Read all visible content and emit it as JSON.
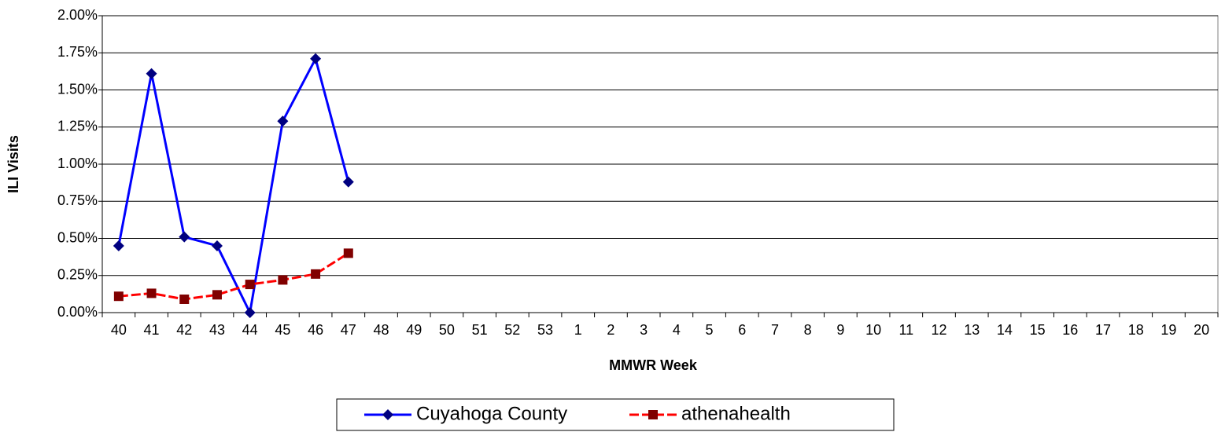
{
  "chart_data": {
    "type": "line",
    "x_label": "MMWR Week",
    "y_label": "ILI Visits",
    "categories": [
      40,
      41,
      42,
      43,
      44,
      45,
      46,
      47,
      48,
      49,
      50,
      51,
      52,
      53,
      1,
      2,
      3,
      4,
      5,
      6,
      7,
      8,
      9,
      10,
      11,
      12,
      13,
      14,
      15,
      16,
      17,
      18,
      19,
      20
    ],
    "series": [
      {
        "name": "Cuyahoga County",
        "color": "#0000ff",
        "marker": "diamond",
        "marker_color": "#000080",
        "values": [
          0.45,
          1.61,
          0.51,
          0.45,
          0.0,
          1.29,
          1.71,
          0.88,
          null,
          null,
          null,
          null,
          null,
          null,
          null,
          null,
          null,
          null,
          null,
          null,
          null,
          null,
          null,
          null,
          null,
          null,
          null,
          null,
          null,
          null,
          null,
          null,
          null,
          null
        ]
      },
      {
        "name": "athenahealth",
        "color": "#ff0000",
        "marker": "square",
        "marker_color": "#800000",
        "dashed": true,
        "values": [
          0.11,
          0.13,
          0.09,
          0.12,
          0.19,
          0.22,
          0.26,
          0.4,
          null,
          null,
          null,
          null,
          null,
          null,
          null,
          null,
          null,
          null,
          null,
          null,
          null,
          null,
          null,
          null,
          null,
          null,
          null,
          null,
          null,
          null,
          null,
          null,
          null,
          null
        ]
      }
    ],
    "ylim": [
      0,
      2
    ],
    "yticks": [
      {
        "value": 0,
        "label": "0.00%"
      },
      {
        "value": 0.25,
        "label": "0.25%"
      },
      {
        "value": 0.5,
        "label": "0.50%"
      },
      {
        "value": 0.75,
        "label": "0.75%"
      },
      {
        "value": 1,
        "label": "1.00%"
      },
      {
        "value": 1.25,
        "label": "1.25%"
      },
      {
        "value": 1.5,
        "label": "1.50%"
      },
      {
        "value": 1.75,
        "label": "1.75%"
      },
      {
        "value": 2,
        "label": "2.00%"
      }
    ],
    "grid": true,
    "legend": "bottom"
  }
}
